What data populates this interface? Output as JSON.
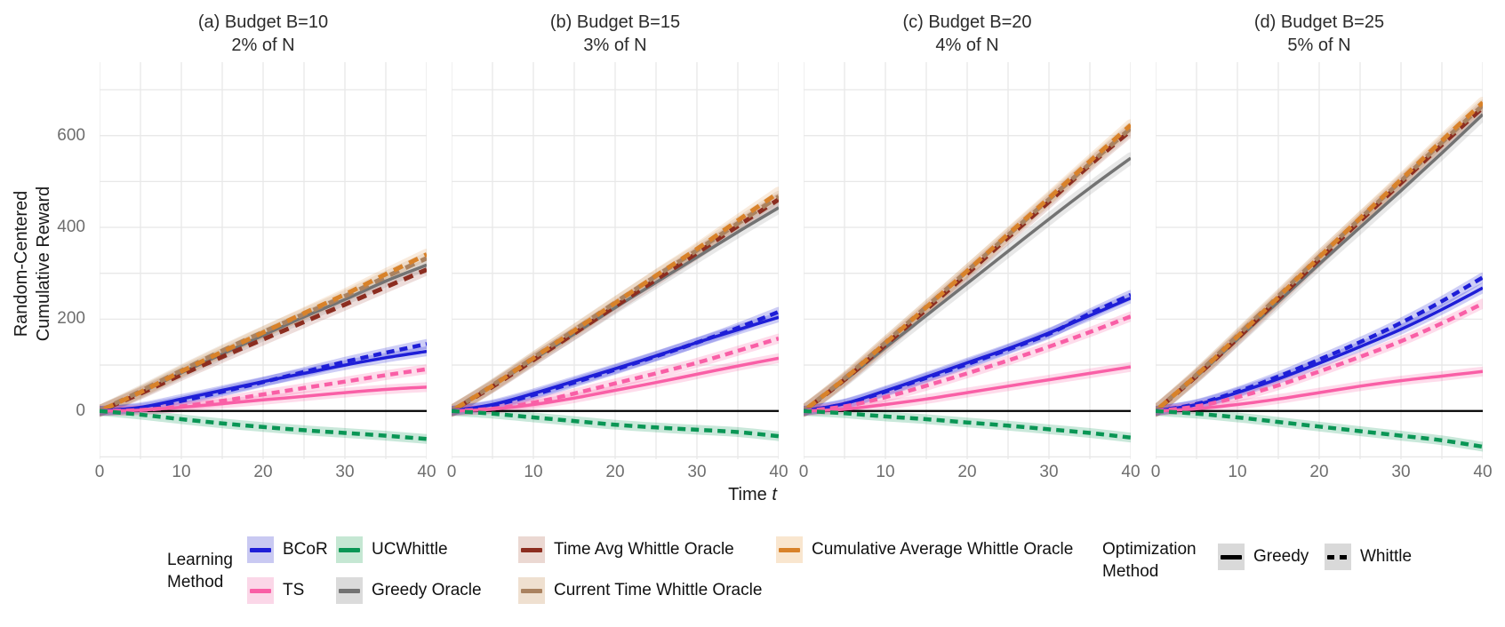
{
  "figure": {
    "ylabel_line1": "Random-Centered",
    "ylabel_line2": "Cumulative Reward",
    "xlabel_prefix": "Time ",
    "xlabel_var": "t",
    "y_ticks": [
      "0",
      "200",
      "400",
      "600"
    ],
    "x_ticks": [
      "0",
      "10",
      "20",
      "30",
      "40"
    ]
  },
  "panels": [
    {
      "title": "(a) Budget B=10",
      "subtitle": "2% of N"
    },
    {
      "title": "(b) Budget B=15",
      "subtitle": "3% of N"
    },
    {
      "title": "(c) Budget B=20",
      "subtitle": "4% of N"
    },
    {
      "title": "(d) Budget B=25",
      "subtitle": "5% of N"
    }
  ],
  "legend": {
    "learning_title_line1": "Learning",
    "learning_title_line2": "Method",
    "optimization_title_line1": "Optimization",
    "optimization_title_line2": "Method",
    "learning_items": [
      {
        "key": "bcor",
        "label": "BCoR"
      },
      {
        "key": "ts",
        "label": "TS"
      },
      {
        "key": "ucwhittle",
        "label": "UCWhittle"
      },
      {
        "key": "greedy_oracle",
        "label": "Greedy Oracle"
      },
      {
        "key": "time_avg",
        "label": "Time Avg Whittle Oracle"
      },
      {
        "key": "current_time",
        "label": "Current Time Whittle Oracle"
      },
      {
        "key": "cum_avg",
        "label": "Cumulative Average Whittle Oracle"
      }
    ],
    "optimization_items": [
      {
        "key": "greedy",
        "label": "Greedy",
        "dash": false
      },
      {
        "key": "whittle",
        "label": "Whittle",
        "dash": true
      }
    ]
  },
  "chart_data": {
    "type": "line",
    "title": "",
    "xlabel": "Time t",
    "ylabel": "Random-Centered Cumulative Reward",
    "xlim": [
      0,
      40
    ],
    "ylim": [
      -105,
      760
    ],
    "x_tick_values": [
      0,
      10,
      20,
      30,
      40
    ],
    "y_tick_values": [
      0,
      200,
      400,
      600
    ],
    "grid": {
      "x_step": 5,
      "y_step": 100,
      "color": "#e8e8e8",
      "zero_line_color": "#000000"
    },
    "t": [
      0,
      5,
      10,
      15,
      20,
      25,
      30,
      35,
      40
    ],
    "styles": {
      "bcor": {
        "line": "#1E1ED7",
        "bg": "#C9C9F2"
      },
      "ts": {
        "line": "#F95FA6",
        "bg": "#FBD7E8"
      },
      "ucwhittle": {
        "line": "#0A9655",
        "bg": "#C5E7D3"
      },
      "greedy_oracle": {
        "line": "#737373",
        "bg": "#DBDBDB"
      },
      "time_avg": {
        "line": "#8C2D20",
        "bg": "#EBD8D2"
      },
      "current_time": {
        "line": "#AA8260",
        "bg": "#EFE0D0"
      },
      "cum_avg": {
        "line": "#D8822A",
        "bg": "#F9E6CF"
      },
      "optimization": {
        "line": "#000000",
        "bg": "#D9D9D9"
      }
    },
    "panels": [
      {
        "title": "(a) Budget B=10",
        "subtitle": "2% of N",
        "series": [
          {
            "key": "greedy_oracle",
            "optimization": "Greedy",
            "values": [
              0,
              40,
              83,
              124,
              165,
              205,
              243,
              283,
              318
            ]
          },
          {
            "key": "time_avg",
            "optimization": "Whittle",
            "values": [
              0,
              38,
              79,
              118,
              156,
              194,
              232,
              270,
              308
            ]
          },
          {
            "key": "current_time",
            "optimization": "Whittle",
            "values": [
              0,
              43,
              88,
              131,
              172,
              211,
              250,
              292,
              333
            ]
          },
          {
            "key": "cum_avg",
            "optimization": "Whittle",
            "values": [
              0,
              41,
              86,
              129,
              171,
              213,
              254,
              298,
              341
            ]
          },
          {
            "key": "bcor",
            "optimization": "Greedy",
            "values": [
              0,
              8,
              26,
              45,
              64,
              82,
              100,
              116,
              130
            ]
          },
          {
            "key": "bcor",
            "optimization": "Whittle",
            "values": [
              0,
              6,
              22,
              42,
              63,
              85,
              107,
              127,
              146
            ]
          },
          {
            "key": "ts",
            "optimization": "Greedy",
            "values": [
              0,
              2,
              8,
              16,
              24,
              32,
              40,
              47,
              52
            ]
          },
          {
            "key": "ts",
            "optimization": "Whittle",
            "values": [
              0,
              2,
              10,
              22,
              36,
              50,
              64,
              78,
              91
            ]
          },
          {
            "key": "ucwhittle",
            "optimization": "Whittle",
            "values": [
              0,
              -8,
              -18,
              -27,
              -35,
              -42,
              -48,
              -54,
              -61
            ]
          }
        ]
      },
      {
        "title": "(b) Budget B=15",
        "subtitle": "3% of N",
        "series": [
          {
            "key": "greedy_oracle",
            "optimization": "Greedy",
            "values": [
              0,
              54,
              112,
              168,
              225,
              280,
              335,
              390,
              443
            ]
          },
          {
            "key": "time_avg",
            "optimization": "Whittle",
            "values": [
              0,
              53,
              111,
              169,
              228,
              286,
              344,
              403,
              461
            ]
          },
          {
            "key": "current_time",
            "optimization": "Whittle",
            "values": [
              0,
              56,
              116,
              176,
              236,
              294,
              350,
              409,
              467
            ]
          },
          {
            "key": "cum_avg",
            "optimization": "Whittle",
            "values": [
              0,
              55,
              115,
              175,
              235,
              295,
              353,
              415,
              476
            ]
          },
          {
            "key": "bcor",
            "optimization": "Greedy",
            "values": [
              0,
              14,
              38,
              65,
              92,
              120,
              149,
              177,
              204
            ]
          },
          {
            "key": "bcor",
            "optimization": "Whittle",
            "values": [
              0,
              12,
              35,
              62,
              90,
              119,
              149,
              181,
              216
            ]
          },
          {
            "key": "ts",
            "optimization": "Greedy",
            "values": [
              0,
              4,
              14,
              28,
              45,
              62,
              80,
              98,
              115
            ]
          },
          {
            "key": "ts",
            "optimization": "Whittle",
            "values": [
              0,
              5,
              18,
              38,
              60,
              82,
              105,
              131,
              158
            ]
          },
          {
            "key": "ucwhittle",
            "optimization": "Whittle",
            "values": [
              0,
              -6,
              -14,
              -22,
              -30,
              -36,
              -41,
              -46,
              -55
            ]
          }
        ]
      },
      {
        "title": "(c) Budget B=20",
        "subtitle": "4% of N",
        "series": [
          {
            "key": "greedy_oracle",
            "optimization": "Greedy",
            "values": [
              0,
              66,
              138,
              208,
              278,
              348,
              418,
              486,
              551
            ]
          },
          {
            "key": "time_avg",
            "optimization": "Whittle",
            "values": [
              0,
              68,
              144,
              221,
              299,
              378,
              456,
              536,
              611
            ]
          },
          {
            "key": "current_time",
            "optimization": "Whittle",
            "values": [
              0,
              71,
              149,
              227,
              305,
              383,
              461,
              539,
              616
            ]
          },
          {
            "key": "cum_avg",
            "optimization": "Whittle",
            "values": [
              0,
              70,
              148,
              226,
              305,
              385,
              464,
              544,
              623
            ]
          },
          {
            "key": "bcor",
            "optimization": "Greedy",
            "values": [
              0,
              16,
              44,
              74,
              105,
              136,
              170,
              208,
              246
            ]
          },
          {
            "key": "bcor",
            "optimization": "Whittle",
            "values": [
              0,
              15,
              42,
              72,
              102,
              134,
              168,
              212,
              253
            ]
          },
          {
            "key": "ts",
            "optimization": "Greedy",
            "values": [
              0,
              4,
              14,
              26,
              40,
              54,
              68,
              82,
              96
            ]
          },
          {
            "key": "ts",
            "optimization": "Whittle",
            "values": [
              0,
              10,
              30,
              55,
              82,
              110,
              140,
              172,
              206
            ]
          },
          {
            "key": "ucwhittle",
            "optimization": "Whittle",
            "values": [
              0,
              -5,
              -12,
              -18,
              -25,
              -32,
              -40,
              -48,
              -58
            ]
          }
        ]
      },
      {
        "title": "(d) Budget B=25",
        "subtitle": "5% of N",
        "series": [
          {
            "key": "greedy_oracle",
            "optimization": "Greedy",
            "values": [
              0,
              75,
              156,
              238,
              320,
              400,
              480,
              562,
              646
            ]
          },
          {
            "key": "time_avg",
            "optimization": "Whittle",
            "values": [
              0,
              76,
              158,
              244,
              330,
              414,
              497,
              580,
              661
            ]
          },
          {
            "key": "current_time",
            "optimization": "Whittle",
            "values": [
              0,
              79,
              164,
              250,
              336,
              419,
              501,
              585,
              666
            ]
          },
          {
            "key": "cum_avg",
            "optimization": "Whittle",
            "values": [
              0,
              78,
              162,
              248,
              335,
              420,
              504,
              589,
              672
            ]
          },
          {
            "key": "bcor",
            "optimization": "Greedy",
            "values": [
              0,
              14,
              40,
              70,
              104,
              140,
              178,
              221,
              268
            ]
          },
          {
            "key": "bcor",
            "optimization": "Whittle",
            "values": [
              0,
              15,
              42,
              75,
              112,
              150,
              192,
              239,
              291
            ]
          },
          {
            "key": "ts",
            "optimization": "Greedy",
            "values": [
              0,
              5,
              14,
              26,
              40,
              54,
              66,
              76,
              86
            ]
          },
          {
            "key": "ts",
            "optimization": "Whittle",
            "values": [
              0,
              10,
              30,
              56,
              86,
              118,
              152,
              191,
              234
            ]
          },
          {
            "key": "ucwhittle",
            "optimization": "Whittle",
            "values": [
              0,
              -6,
              -14,
              -24,
              -34,
              -44,
              -54,
              -64,
              -78
            ]
          }
        ]
      }
    ]
  }
}
